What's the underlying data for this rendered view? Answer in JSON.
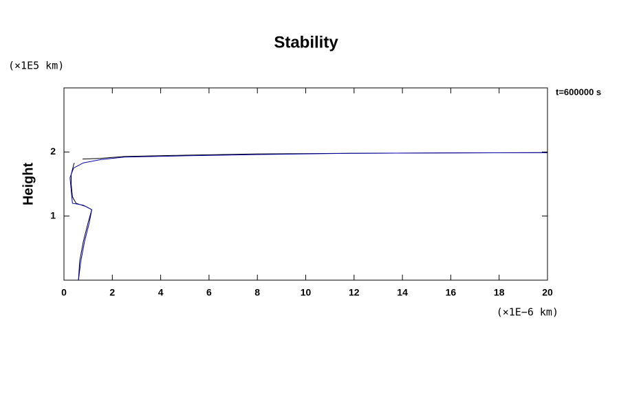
{
  "chart_data": {
    "type": "line",
    "title": "Stability",
    "y_label": "Height",
    "y_unit": "(×1E5 km)",
    "x_unit": "(×1E−6 km)",
    "annotation": "t=600000 s",
    "xlim": [
      0,
      20
    ],
    "ylim": [
      0,
      3
    ],
    "xticks": [
      0,
      2,
      4,
      6,
      8,
      10,
      12,
      14,
      16,
      18,
      20
    ],
    "yticks": [
      1,
      2
    ],
    "series": [
      {
        "color": "#000000",
        "x": [
          0.6,
          0.65,
          0.8,
          1.0,
          1.15,
          0.9,
          0.5,
          0.35,
          0.3,
          0.3,
          0.4,
          0.43,
          null,
          0.77,
          1.5,
          2.5,
          5,
          8,
          12,
          20
        ],
        "values": [
          0.0,
          0.3,
          0.6,
          0.9,
          1.1,
          1.15,
          1.2,
          1.3,
          1.5,
          1.65,
          1.8,
          1.83,
          null,
          1.89,
          1.9,
          1.93,
          1.95,
          1.97,
          1.98,
          1.99
        ]
      },
      {
        "color": "#0000aa",
        "x": [
          0.6,
          0.7,
          0.85,
          1.05,
          1.15,
          0.8,
          0.35,
          0.3,
          0.25,
          0.4,
          0.8,
          1.5,
          2.5,
          5,
          8,
          12,
          20
        ],
        "values": [
          0.0,
          0.3,
          0.6,
          0.9,
          1.1,
          1.17,
          1.2,
          1.4,
          1.6,
          1.75,
          1.83,
          1.88,
          1.92,
          1.94,
          1.96,
          1.98,
          1.99
        ]
      }
    ]
  }
}
